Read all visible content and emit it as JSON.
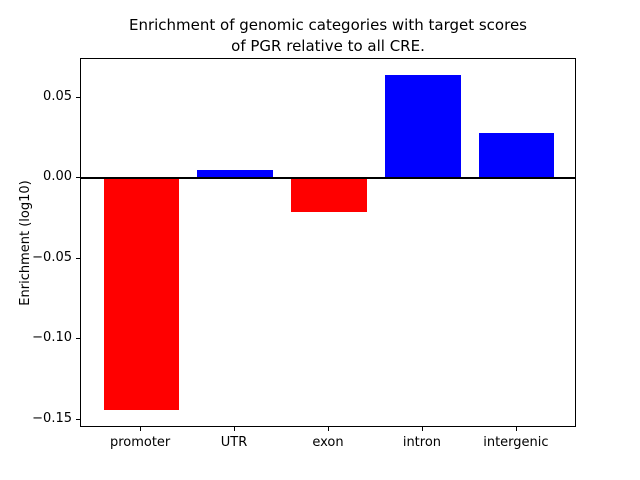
{
  "figure": {
    "title": "Enrichment of genomic categories with target scores\nof PGR relative to all CRE.",
    "ylabel": "Enrichment (log10)"
  },
  "chart_data": {
    "type": "bar",
    "title": "Enrichment of genomic categories with target scores\nof PGR relative to all CRE.",
    "xlabel": "",
    "ylabel": "Enrichment (log10)",
    "categories": [
      "promoter",
      "UTR",
      "exon",
      "intron",
      "intergenic"
    ],
    "values": [
      -0.144,
      0.005,
      -0.021,
      0.064,
      0.028
    ],
    "bar_colors": [
      "#ff0000",
      "#0000ff",
      "#ff0000",
      "#0000ff",
      "#0000ff"
    ],
    "positive_color": "#0000ff",
    "negative_color": "#ff0000",
    "ylim": [
      -0.155,
      0.074
    ],
    "yticks": [
      0.05,
      0.0,
      -0.05,
      -0.1,
      -0.15
    ],
    "ytick_labels": [
      "0.05",
      "0.00",
      "−0.05",
      "−0.10",
      "−0.15"
    ],
    "zero_line": true,
    "grid": false,
    "legend": null,
    "axis_color": "#000000",
    "background_color": "#ffffff"
  }
}
